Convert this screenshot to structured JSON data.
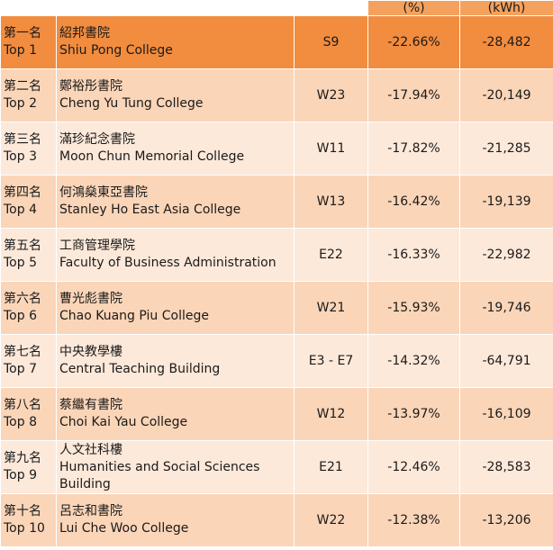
{
  "header": {
    "rank": "",
    "name": "",
    "code": "",
    "percent": "(%)",
    "kwh": "(kWh)"
  },
  "colors": {
    "top_row": "#f28c3e",
    "row_dark": "#fbd5b8",
    "row_light": "#fde9da"
  },
  "rows": [
    {
      "rank_zh": "第一名",
      "rank_en": "Top 1",
      "name_zh": "紹邦書院",
      "name_en": "Shiu Pong College",
      "code": "S9",
      "percent": "-22.66%",
      "kwh": "-28,482"
    },
    {
      "rank_zh": "第二名",
      "rank_en": "Top 2",
      "name_zh": "鄭裕彤書院",
      "name_en": "Cheng Yu Tung College",
      "code": "W23",
      "percent": "-17.94%",
      "kwh": "-20,149"
    },
    {
      "rank_zh": "第三名",
      "rank_en": "Top 3",
      "name_zh": "滿珍紀念書院",
      "name_en": "Moon Chun Memorial College",
      "code": "W11",
      "percent": "-17.82%",
      "kwh": "-21,285"
    },
    {
      "rank_zh": "第四名",
      "rank_en": "Top 4",
      "name_zh": "何鴻燊東亞書院",
      "name_en": "Stanley Ho East Asia College",
      "code": "W13",
      "percent": "-16.42%",
      "kwh": "-19,139"
    },
    {
      "rank_zh": "第五名",
      "rank_en": "Top 5",
      "name_zh": "工商管理學院",
      "name_en": "Faculty of Business Administration",
      "code": "E22",
      "percent": "-16.33%",
      "kwh": "-22,982"
    },
    {
      "rank_zh": "第六名",
      "rank_en": "Top 6",
      "name_zh": "曹光彪書院",
      "name_en": "Chao Kuang Piu College",
      "code": "W21",
      "percent": "-15.93%",
      "kwh": "-19,746"
    },
    {
      "rank_zh": "第七名",
      "rank_en": "Top 7",
      "name_zh": "中央教學樓",
      "name_en": "Central Teaching Building",
      "code": "E3 - E7",
      "percent": "-14.32%",
      "kwh": "-64,791"
    },
    {
      "rank_zh": "第八名",
      "rank_en": "Top 8",
      "name_zh": "蔡繼有書院",
      "name_en": "Choi Kai Yau College",
      "code": "W12",
      "percent": "-13.97%",
      "kwh": "-16,109"
    },
    {
      "rank_zh": "第九名",
      "rank_en": "Top 9",
      "name_zh": "人文社科樓",
      "name_en": "Humanities and Social Sciences Building",
      "code": "E21",
      "percent": "-12.46%",
      "kwh": "-28,583"
    },
    {
      "rank_zh": "第十名",
      "rank_en": "Top 10",
      "name_zh": "呂志和書院",
      "name_en": "Lui Che Woo College",
      "code": "W22",
      "percent": "-12.38%",
      "kwh": "-13,206"
    }
  ]
}
